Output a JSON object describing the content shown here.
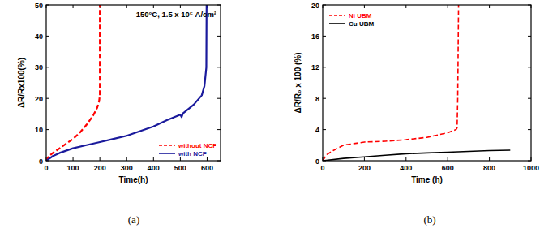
{
  "chart_data": [
    {
      "type": "line",
      "title": "(a)",
      "x_label": "Time(h)",
      "y_label": "ΔR/Rx100(%)",
      "annotations": [
        "150°C, 1.5 x 10⁵ A/cm²"
      ],
      "xlim": [
        0,
        650
      ],
      "xticks": [
        0,
        100,
        200,
        300,
        400,
        500,
        600
      ],
      "ylim": [
        0,
        50
      ],
      "yticks": [
        0,
        10,
        20,
        30,
        40,
        50
      ],
      "legend": "lower right",
      "series": [
        {
          "name": "without NCF",
          "color": "#ff0000",
          "line_style": "dashed",
          "x": [
            0,
            10,
            25,
            50,
            75,
            100,
            125,
            150,
            175,
            190,
            197,
            200,
            200
          ],
          "values": [
            0,
            1.5,
            2.5,
            4,
            5.5,
            7,
            9,
            11.5,
            14.5,
            17,
            19,
            21,
            50
          ]
        },
        {
          "name": "with NCF",
          "color": "#1a1a9c",
          "line_style": "solid",
          "x": [
            0,
            25,
            50,
            100,
            150,
            200,
            250,
            300,
            350,
            400,
            450,
            500,
            505,
            510,
            550,
            580,
            590,
            597,
            598
          ],
          "values": [
            0,
            1.5,
            2.5,
            4,
            5,
            6,
            7,
            8,
            9.5,
            11,
            13,
            14.8,
            14,
            15.2,
            18,
            21,
            24,
            30,
            50
          ]
        }
      ]
    },
    {
      "type": "line",
      "title": "(b)",
      "x_label": "Time (h)",
      "y_label": "ΔR/R₀ x 100 (%)",
      "xlim": [
        0,
        1000
      ],
      "xticks": [
        0,
        200,
        400,
        600,
        800,
        1000
      ],
      "ylim": [
        0,
        20
      ],
      "yticks": [
        0,
        4,
        8,
        12,
        16,
        20
      ],
      "legend": "upper left",
      "series": [
        {
          "name": "Ni UBM",
          "color": "#ff0000",
          "line_style": "dashed",
          "x": [
            0,
            20,
            50,
            100,
            150,
            200,
            300,
            400,
            500,
            600,
            640,
            645,
            648,
            650,
            652
          ],
          "values": [
            0,
            0.8,
            1.3,
            2,
            2.2,
            2.4,
            2.5,
            2.7,
            3,
            3.6,
            4,
            4.2,
            8,
            14,
            20
          ]
        },
        {
          "name": "Cu UBM",
          "color": "#000000",
          "line_style": "solid",
          "x": [
            0,
            100,
            200,
            300,
            400,
            500,
            600,
            700,
            800,
            900
          ],
          "values": [
            0,
            0.3,
            0.5,
            0.7,
            0.9,
            1.0,
            1.1,
            1.2,
            1.3,
            1.35
          ]
        }
      ]
    }
  ]
}
